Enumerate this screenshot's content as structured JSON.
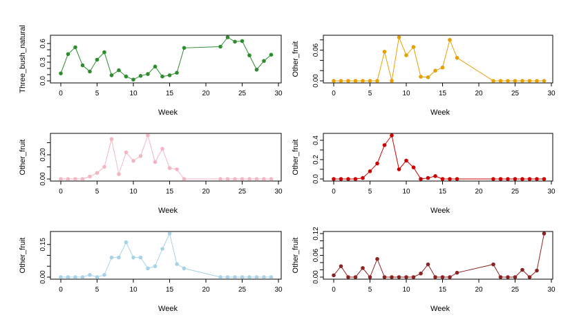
{
  "chart_data": [
    {
      "type": "line",
      "xlabel": "Week",
      "ylabel": "Three_bush_natural",
      "color": "#2e8b2e",
      "xlim": [
        0,
        30
      ],
      "ylim": [
        0,
        0.7
      ],
      "xticks": [
        "0",
        "5",
        "10",
        "15",
        "20",
        "25",
        "30"
      ],
      "yticks": [
        "0.0",
        "0.3",
        "0.6"
      ],
      "yticks_minor": [
        0.1,
        0.2,
        0.4,
        0.5
      ],
      "x": [
        0,
        1,
        2,
        3,
        4,
        5,
        6,
        7,
        8,
        9,
        10,
        11,
        12,
        13,
        14,
        15,
        16,
        17,
        22,
        23,
        24,
        25,
        26,
        27,
        28,
        29
      ],
      "y": [
        0.12,
        0.43,
        0.54,
        0.25,
        0.15,
        0.34,
        0.46,
        0.09,
        0.17,
        0.07,
        0.02,
        0.08,
        0.11,
        0.23,
        0.07,
        0.09,
        0.13,
        0.53,
        0.55,
        0.7,
        0.63,
        0.64,
        0.41,
        0.18,
        0.32,
        0.42
      ]
    },
    {
      "type": "line",
      "xlabel": "Week",
      "ylabel": "Other_fruit",
      "color": "#e6a000",
      "xlim": [
        0,
        30
      ],
      "ylim": [
        0,
        0.085
      ],
      "xticks": [
        "0",
        "5",
        "10",
        "15",
        "20",
        "25",
        "30"
      ],
      "yticks": [
        "0.00",
        "0.06"
      ],
      "yticks_minor": [
        0.02,
        0.04,
        0.08
      ],
      "x": [
        0,
        1,
        2,
        3,
        4,
        5,
        6,
        7,
        8,
        9,
        10,
        11,
        12,
        13,
        14,
        15,
        16,
        17,
        22,
        23,
        24,
        25,
        26,
        27,
        28,
        29
      ],
      "y": [
        0,
        0,
        0,
        0,
        0,
        0,
        0,
        0.057,
        0,
        0.085,
        0.05,
        0.066,
        0.008,
        0.007,
        0.02,
        0.026,
        0.08,
        0.045,
        0,
        0,
        0,
        0,
        0,
        0,
        0,
        0
      ]
    },
    {
      "type": "line",
      "xlabel": "Week",
      "ylabel": "Other_fruit",
      "color": "#f4b6c2",
      "xlim": [
        0,
        30
      ],
      "ylim": [
        0,
        0.36
      ],
      "xticks": [
        "0",
        "5",
        "10",
        "15",
        "20",
        "25",
        "30"
      ],
      "yticks": [
        "0.00",
        "0.20"
      ],
      "yticks_minor": [
        0.1,
        0.3
      ],
      "x": [
        0,
        1,
        2,
        3,
        4,
        5,
        6,
        7,
        8,
        9,
        10,
        11,
        12,
        13,
        14,
        15,
        16,
        17,
        22,
        23,
        24,
        25,
        26,
        27,
        28,
        29
      ],
      "y": [
        0,
        0,
        0,
        0,
        0.02,
        0.05,
        0.1,
        0.33,
        0.04,
        0.22,
        0.15,
        0.19,
        0.36,
        0.14,
        0.25,
        0.09,
        0.08,
        0,
        0,
        0,
        0,
        0,
        0,
        0,
        0,
        0
      ]
    },
    {
      "type": "line",
      "xlabel": "Week",
      "ylabel": "Other_fruit",
      "color": "#cc0000",
      "xlim": [
        0,
        30
      ],
      "ylim": [
        0,
        0.45
      ],
      "xticks": [
        "0",
        "5",
        "10",
        "15",
        "20",
        "25",
        "30"
      ],
      "yticks": [
        "0.0",
        "0.2",
        "0.4"
      ],
      "yticks_minor": [
        0.1,
        0.3
      ],
      "x": [
        0,
        1,
        2,
        3,
        4,
        5,
        6,
        7,
        8,
        9,
        10,
        11,
        12,
        13,
        14,
        15,
        16,
        17,
        22,
        23,
        24,
        25,
        26,
        27,
        28,
        29
      ],
      "y": [
        0,
        0,
        0,
        0,
        0.01,
        0.08,
        0.16,
        0.35,
        0.45,
        0.1,
        0.19,
        0.12,
        0,
        0.01,
        0.03,
        0,
        0,
        0,
        0,
        0,
        0,
        0,
        0,
        0,
        0,
        0
      ]
    },
    {
      "type": "line",
      "xlabel": "Week",
      "ylabel": "Other_fruit",
      "color": "#a8d2e6",
      "xlim": [
        0,
        30
      ],
      "ylim": [
        0,
        0.2
      ],
      "xticks": [
        "0",
        "5",
        "10",
        "15",
        "20",
        "25",
        "30"
      ],
      "yticks": [
        "0.00",
        "0.15"
      ],
      "yticks_minor": [
        0.05,
        0.1
      ],
      "x": [
        0,
        1,
        2,
        3,
        4,
        5,
        6,
        7,
        8,
        9,
        10,
        11,
        12,
        13,
        14,
        15,
        16,
        17,
        22,
        23,
        24,
        25,
        26,
        27,
        28,
        29
      ],
      "y": [
        0,
        0,
        0,
        0,
        0.01,
        0,
        0.01,
        0.09,
        0.09,
        0.16,
        0.09,
        0.09,
        0.04,
        0.05,
        0.13,
        0.2,
        0.06,
        0.04,
        0,
        0,
        0,
        0,
        0,
        0,
        0,
        0
      ]
    },
    {
      "type": "line",
      "xlabel": "Week",
      "ylabel": "Other_fruit",
      "color": "#8b2323",
      "xlim": [
        0,
        30
      ],
      "ylim": [
        0,
        0.12
      ],
      "xticks": [
        "0",
        "5",
        "10",
        "15",
        "20",
        "25",
        "30"
      ],
      "yticks": [
        "0.00",
        "0.06",
        "0.12"
      ],
      "yticks_minor": [
        0.02,
        0.04,
        0.08,
        0.1
      ],
      "x": [
        0,
        1,
        2,
        3,
        4,
        5,
        6,
        7,
        8,
        9,
        10,
        11,
        12,
        13,
        14,
        15,
        16,
        17,
        22,
        23,
        24,
        25,
        26,
        27,
        28,
        29
      ],
      "y": [
        0.005,
        0.03,
        0,
        0,
        0.025,
        0,
        0.05,
        0,
        0,
        0,
        0,
        0,
        0.01,
        0.035,
        0,
        0,
        0,
        0.012,
        0.035,
        0,
        0,
        0,
        0.02,
        0,
        0.018,
        0.12
      ]
    }
  ]
}
